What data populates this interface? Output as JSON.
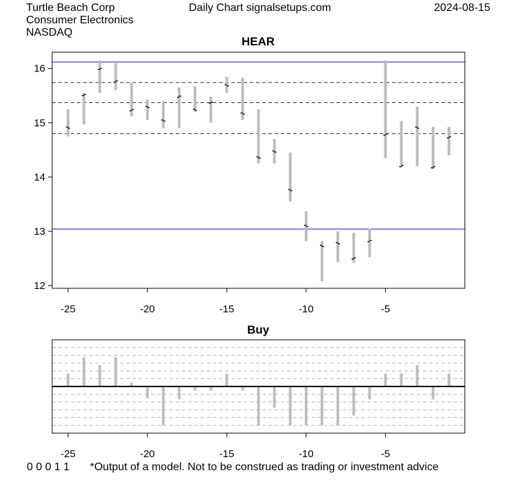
{
  "header": {
    "company": "Turtle Beach Corp",
    "sector": "Consumer Electronics",
    "exchange": "NASDAQ",
    "center_title": "Daily Chart signalsetups.com",
    "date": "2024-08-15"
  },
  "footer": {
    "code": "0 0 0 1 1",
    "disclaimer": "*Output of a model. Not to be construed as trading or investment advice"
  },
  "chart_data": [
    {
      "type": "candlestick-range",
      "title": "HEAR",
      "x_ticks": [
        -25,
        -20,
        -15,
        -10,
        -5
      ],
      "y_ticks": [
        12,
        13,
        14,
        15,
        16
      ],
      "xlim": [
        -26,
        0
      ],
      "ylim": [
        11.95,
        16.3
      ],
      "solid_levels": [
        16.12,
        13.04
      ],
      "dashed_levels": [
        15.74,
        15.37,
        14.8
      ],
      "bars": [
        {
          "x": -25,
          "low": 14.75,
          "high": 15.25,
          "open": 14.92,
          "close": 14.9
        },
        {
          "x": -24,
          "low": 14.97,
          "high": 15.55,
          "open": 15.5,
          "close": 15.52
        },
        {
          "x": -23,
          "low": 15.55,
          "high": 16.15,
          "open": 15.98,
          "close": 16.0
        },
        {
          "x": -22,
          "low": 15.6,
          "high": 16.1,
          "open": 15.75,
          "close": 15.77
        },
        {
          "x": -21,
          "low": 15.12,
          "high": 15.73,
          "open": 15.22,
          "close": 15.24
        },
        {
          "x": -20,
          "low": 15.05,
          "high": 15.43,
          "open": 15.3,
          "close": 15.28
        },
        {
          "x": -19,
          "low": 14.9,
          "high": 15.4,
          "open": 15.05,
          "close": 15.03
        },
        {
          "x": -18,
          "low": 14.9,
          "high": 15.65,
          "open": 15.47,
          "close": 15.49
        },
        {
          "x": -17,
          "low": 15.2,
          "high": 15.67,
          "open": 15.25,
          "close": 15.23
        },
        {
          "x": -16,
          "low": 15.0,
          "high": 15.48,
          "open": 15.36,
          "close": 15.38
        },
        {
          "x": -15,
          "low": 15.55,
          "high": 15.85,
          "open": 15.7,
          "close": 15.68
        },
        {
          "x": -14,
          "low": 15.05,
          "high": 15.83,
          "open": 15.18,
          "close": 15.16
        },
        {
          "x": -13,
          "low": 14.25,
          "high": 15.25,
          "open": 14.37,
          "close": 14.35
        },
        {
          "x": -12,
          "low": 14.25,
          "high": 14.7,
          "open": 14.48,
          "close": 14.46
        },
        {
          "x": -11,
          "low": 13.55,
          "high": 14.45,
          "open": 13.77,
          "close": 13.75
        },
        {
          "x": -10,
          "low": 12.82,
          "high": 13.37,
          "open": 13.11,
          "close": 13.09
        },
        {
          "x": -9,
          "low": 12.08,
          "high": 12.82,
          "open": 12.74,
          "close": 12.72
        },
        {
          "x": -8,
          "low": 12.43,
          "high": 13.0,
          "open": 12.79,
          "close": 12.77
        },
        {
          "x": -7,
          "low": 12.42,
          "high": 12.97,
          "open": 12.49,
          "close": 12.51
        },
        {
          "x": -6,
          "low": 12.52,
          "high": 13.05,
          "open": 12.81,
          "close": 12.83
        },
        {
          "x": -5,
          "low": 14.35,
          "high": 16.15,
          "open": 14.77,
          "close": 14.79
        },
        {
          "x": -4,
          "low": 14.18,
          "high": 15.03,
          "open": 14.19,
          "close": 14.21
        },
        {
          "x": -3,
          "low": 14.2,
          "high": 15.3,
          "open": 14.92,
          "close": 14.9
        },
        {
          "x": -2,
          "low": 14.15,
          "high": 14.93,
          "open": 14.17,
          "close": 14.19
        },
        {
          "x": -1,
          "low": 14.4,
          "high": 14.92,
          "open": 14.72,
          "close": 14.74
        }
      ]
    },
    {
      "type": "bar",
      "title": "Buy",
      "x_ticks": [
        -25,
        -20,
        -15,
        -10,
        -5
      ],
      "xlim": [
        -26,
        0
      ],
      "ylim": [
        -1.2,
        1.2
      ],
      "grid_levels": [
        1.0,
        0.8,
        0.6,
        0.4,
        0.2,
        -0.2,
        -0.4,
        -0.6,
        -0.8,
        -1.0
      ],
      "x": [
        -25,
        -24,
        -23,
        -22,
        -21,
        -20,
        -19,
        -18,
        -17,
        -16,
        -15,
        -14,
        -13,
        -12,
        -11,
        -10,
        -9,
        -8,
        -7,
        -6,
        -5,
        -4,
        -3,
        -2,
        -1
      ],
      "values": [
        0.33,
        0.75,
        0.55,
        0.75,
        0.1,
        -0.3,
        -1.0,
        -0.33,
        -0.1,
        -0.1,
        0.33,
        -0.1,
        -1.0,
        -0.55,
        -1.0,
        -1.0,
        -1.0,
        -1.0,
        -0.75,
        -0.33,
        0.33,
        0.33,
        0.55,
        -0.33,
        0.33
      ]
    }
  ]
}
